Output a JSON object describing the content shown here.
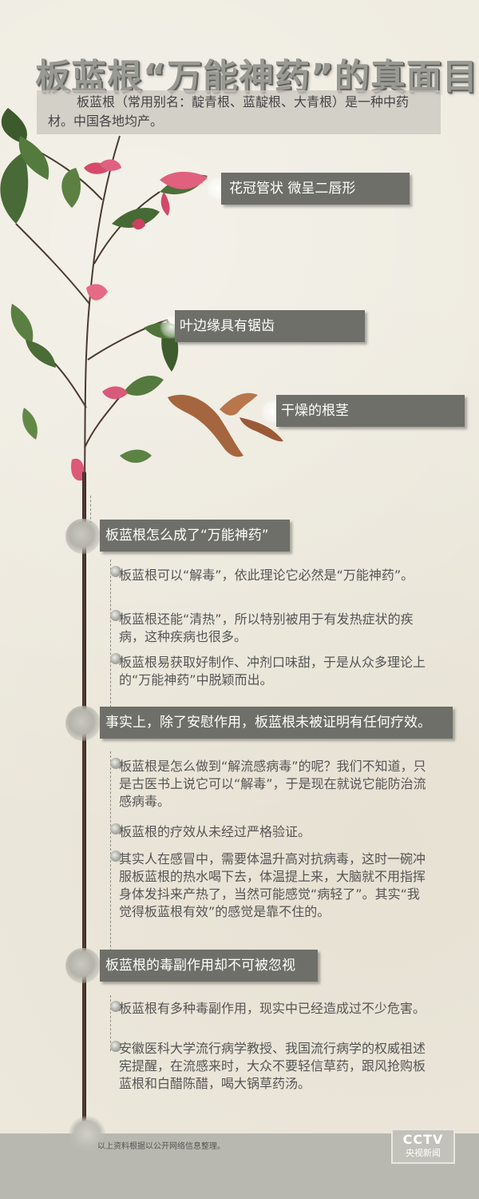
{
  "title": "板蓝根“万能神药”的真面目",
  "intro": "板蓝根（常用别名：靛青根、蓝靛根、大青根）是一种中药材。中国各地均产。",
  "callouts": {
    "flower": "花冠管状 微呈二唇形",
    "leaf": "叶边缘具有锯齿",
    "root": "干燥的根茎"
  },
  "sections": [
    {
      "heading": "板蓝根怎么成了“万能神药”",
      "paragraphs": [
        "板蓝根可以“解毒”，依此理论它必然是“万能神药”。",
        "板蓝根还能“清热”，所以特别被用于有发热症状的疾病，这种疾病也很多。",
        "板蓝根易获取好制作、冲剂口味甜，于是从众多理论上的“万能神药”中脱颖而出。"
      ]
    },
    {
      "heading": "事实上，除了安慰作用，板蓝根未被证明有任何疗效。",
      "paragraphs": [
        "板蓝根是怎么做到“解流感病毒”的呢？我们不知道，只是古医书上说它可以“解毒”，于是现在就说它能防治流感病毒。",
        "板蓝根的疗效从未经过严格验证。",
        "其实人在感冒中，需要体温升高对抗病毒，这时一碗冲服板蓝根的热水喝下去，体温提上来，大脑就不用指挥身体发抖来产热了，当然可能感觉“病轻了”。其实“我觉得板蓝根有效”的感觉是靠不住的。"
      ]
    },
    {
      "heading": "板蓝根的毒副作用却不可被忽视",
      "paragraphs": [
        "板蓝根有多种毒副作用，现实中已经造成过不少危害。",
        "安徽医科大学流行病学教授、我国流行病学的权威祖述宪提醒，在流感来时，大众不要轻信草药，跟风抢购板蓝根和白醋陈醋，喝大锅草药汤。"
      ]
    }
  ],
  "footer": {
    "note": "以上资料根据以公开网络信息整理。",
    "logo_top": "CCTV",
    "logo_bottom": "央视新闻"
  }
}
